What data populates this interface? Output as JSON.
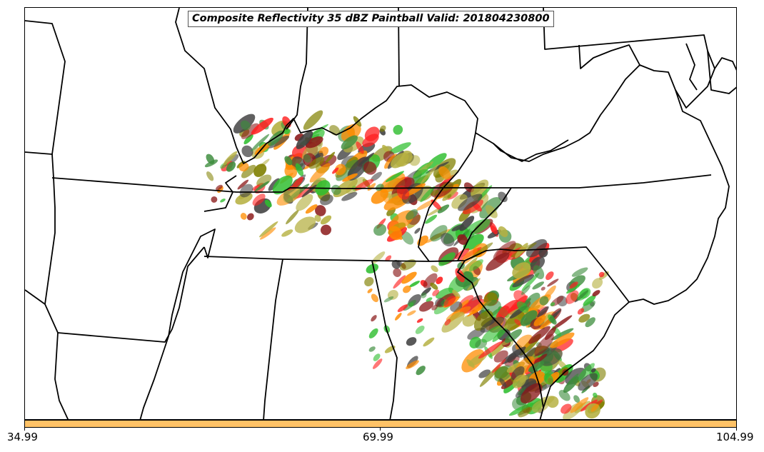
{
  "title": "Composite Reflectivity 35 dBZ Paintball Valid: 201804230800",
  "colorbar": {
    "color": "#ffc266",
    "ticks": [
      "34.99",
      "69.99",
      "104.99"
    ]
  },
  "member_colors": [
    "#ff2020",
    "#ff8c00",
    "#2fbe2f",
    "#b5b040",
    "#8b1a1a",
    "#3c8c3c",
    "#808000",
    "#404040"
  ]
}
